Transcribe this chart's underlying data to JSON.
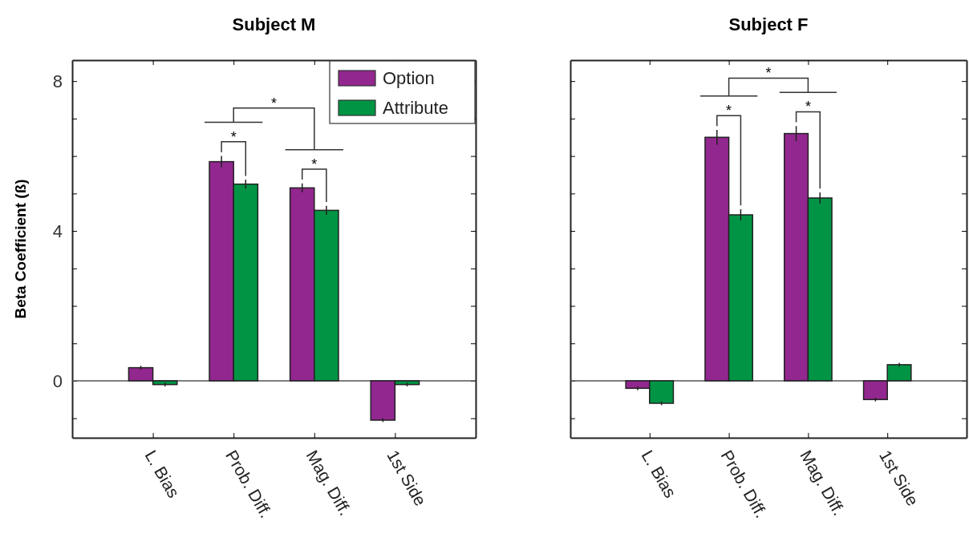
{
  "chart_data": [
    {
      "type": "bar",
      "title": "Subject M",
      "ylabel": "Beta Coefficient (ß)",
      "categories": [
        "L. Bias",
        "Prob. Diff.",
        "Mag. Diff.",
        "1st Side"
      ],
      "series": [
        {
          "name": "Option",
          "color": "#92278f",
          "values": [
            0.35,
            5.85,
            5.15,
            -1.05
          ],
          "errors": [
            0.05,
            0.15,
            0.12,
            0.05
          ]
        },
        {
          "name": "Attribute",
          "color": "#009444",
          "values": [
            -0.1,
            5.25,
            4.55,
            -0.1
          ],
          "errors": [
            0.05,
            0.12,
            0.12,
            0.05
          ]
        }
      ],
      "ylim": [
        -1.52,
        8.56
      ],
      "yticks": [
        {
          "value": -1,
          "label": null
        },
        0,
        {
          "value": 1,
          "label": null
        },
        {
          "value": 2,
          "label": null
        },
        {
          "value": 3,
          "label": null
        },
        4,
        {
          "value": 5,
          "label": null
        },
        {
          "value": 6,
          "label": null
        },
        {
          "value": 7,
          "label": null
        },
        8
      ],
      "legend": "top right",
      "annotations": [
        "*",
        "*",
        "*"
      ]
    },
    {
      "type": "bar",
      "title": "Subject F",
      "categories": [
        "L. Bias",
        "Prob. Diff.",
        "Mag. Diff.",
        "1st Side"
      ],
      "series": [
        {
          "color": "#92278f",
          "values": [
            -0.2,
            6.5,
            6.6,
            -0.5
          ],
          "errors": [
            0.05,
            0.2,
            0.2,
            0.05
          ]
        },
        {
          "color": "#009444",
          "values": [
            -0.6,
            4.43,
            4.88,
            0.43
          ],
          "errors": [
            0.05,
            0.15,
            0.15,
            0.05
          ]
        }
      ],
      "ylim": [
        -1.52,
        8.56
      ],
      "yticks": [
        {
          "value": -1,
          "label": null
        },
        0,
        {
          "value": 1,
          "label": null
        },
        {
          "value": 2,
          "label": null
        },
        {
          "value": 3,
          "label": null
        },
        4,
        {
          "value": 5,
          "label": null
        },
        {
          "value": 6,
          "label": null
        },
        {
          "value": 7,
          "label": null
        },
        8
      ],
      "tick_labels": "x",
      "annotations": [
        "*",
        "*",
        "*"
      ]
    }
  ]
}
